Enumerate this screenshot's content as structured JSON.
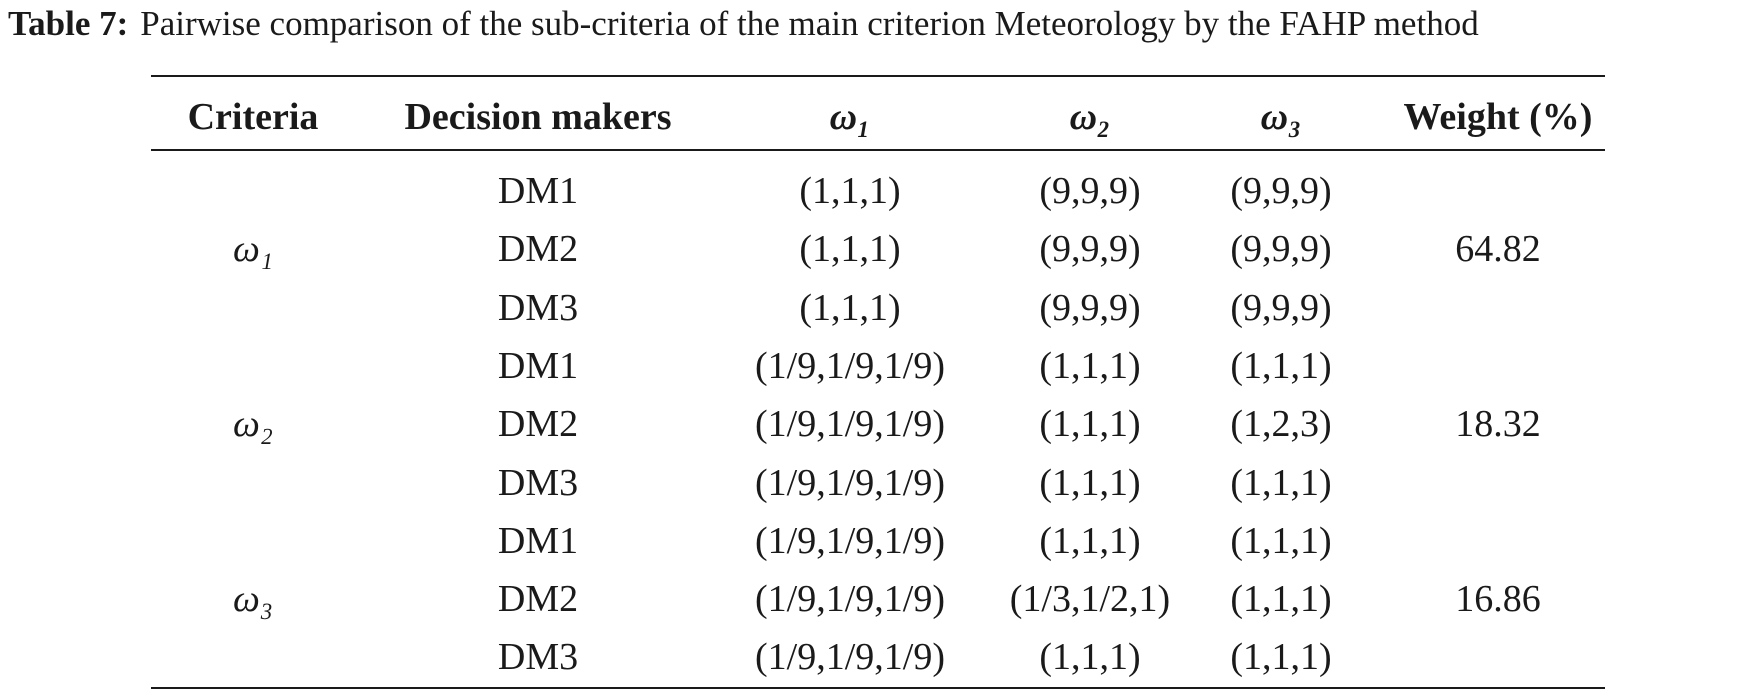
{
  "caption": {
    "label": "Table 7:",
    "text": "Pairwise comparison of the sub-criteria of the main criterion Meteorology by the FAHP method"
  },
  "table": {
    "header": [
      "Criteria",
      "Decision makers",
      "ω₁",
      "ω₂",
      "ω₃",
      "Weight (%)"
    ],
    "groups": [
      {
        "criterion": "ω₁",
        "weight": 64.82,
        "rows": [
          [
            "DM1",
            "(1,1,1)",
            "(9,9,9)",
            "(9,9,9)"
          ],
          [
            "DM2",
            "(1,1,1)",
            "(9,9,9)",
            "(9,9,9)"
          ],
          [
            "DM3",
            "(1,1,1)",
            "(9,9,9)",
            "(9,9,9)"
          ]
        ]
      },
      {
        "criterion": "ω₂",
        "weight": 18.32,
        "rows": [
          [
            "DM1",
            "(1/9,1/9,1/9)",
            "(1,1,1)",
            "(1,1,1)"
          ],
          [
            "DM2",
            "(1/9,1/9,1/9)",
            "(1,1,1)",
            "(1,2,3)"
          ],
          [
            "DM3",
            "(1/9,1/9,1/9)",
            "(1,1,1)",
            "(1,1,1)"
          ]
        ]
      },
      {
        "criterion": "ω₃",
        "weight": 16.86,
        "rows": [
          [
            "DM1",
            "(1/9,1/9,1/9)",
            "(1,1,1)",
            "(1,1,1)"
          ],
          [
            "DM2",
            "(1/9,1/9,1/9)",
            "(1/3,1/2,1)",
            "(1,1,1)"
          ],
          [
            "DM3",
            "(1/9,1/9,1/9)",
            "(1,1,1)",
            "(1,1,1)"
          ]
        ]
      }
    ]
  }
}
